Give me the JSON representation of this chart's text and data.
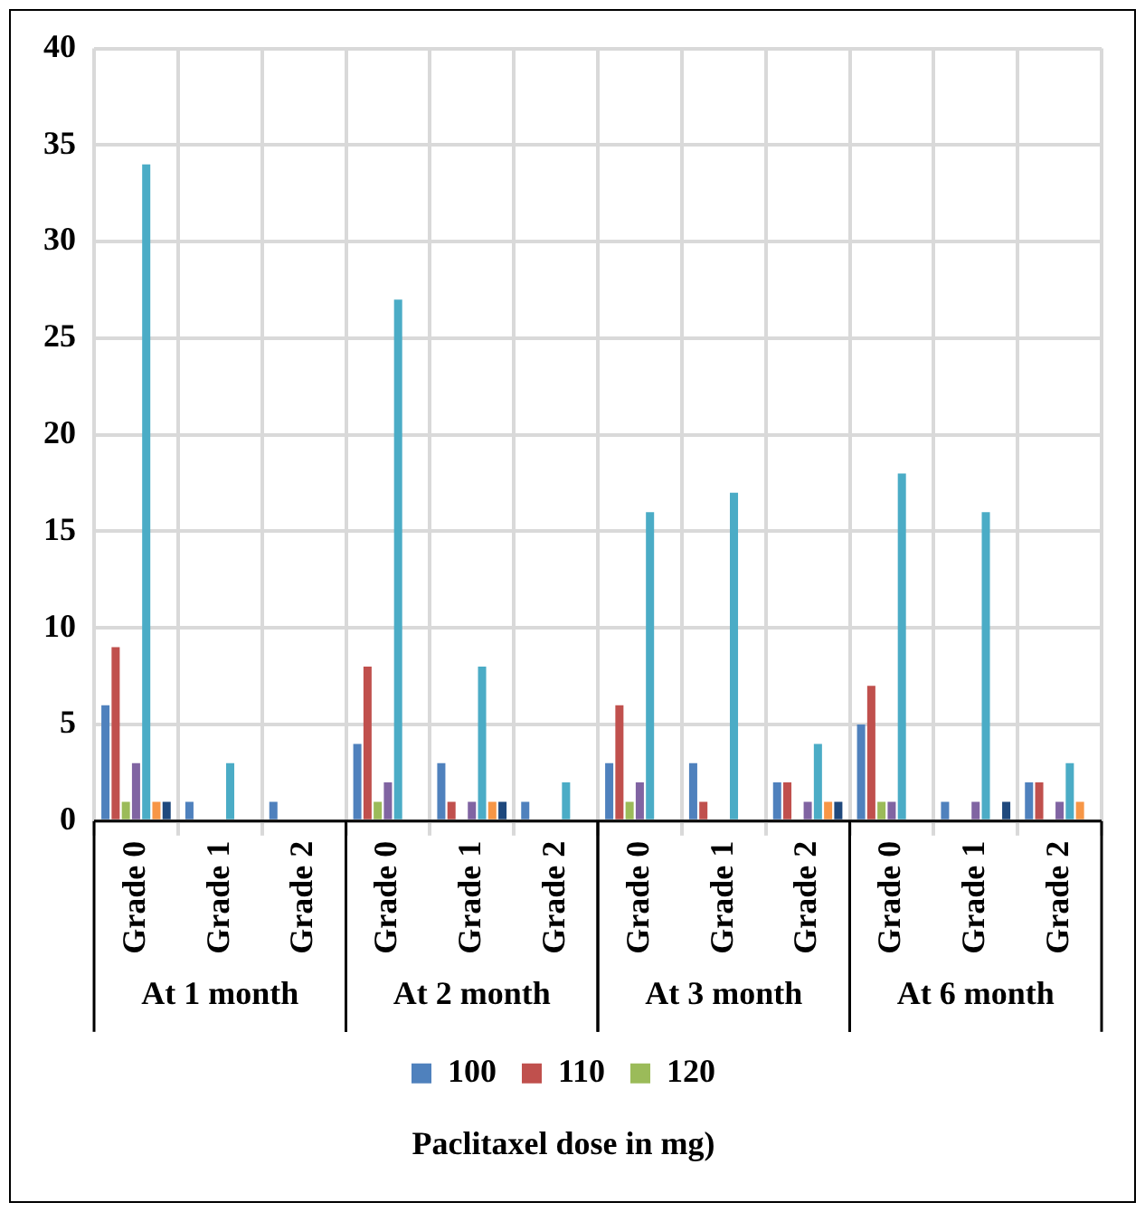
{
  "chart_data": {
    "type": "bar",
    "categories": [
      "Grade 0",
      "Grade 1",
      "Grade 2",
      "Grade 0",
      "Grade 1",
      "Grade 2",
      "Grade 0",
      "Grade 1",
      "Grade 2",
      "Grade 0",
      "Grade 1",
      "Grade 2"
    ],
    "series": [
      {
        "name": "100",
        "color": "#4f81bd",
        "values": [
          6,
          1,
          1,
          4,
          3,
          1,
          3,
          3,
          2,
          5,
          1,
          2
        ]
      },
      {
        "name": "110",
        "color": "#c0504d",
        "values": [
          9,
          0,
          0,
          8,
          1,
          0,
          6,
          1,
          2,
          7,
          0,
          2
        ]
      },
      {
        "name": "120",
        "color": "#9bbb59",
        "values": [
          1,
          0,
          0,
          1,
          0,
          0,
          1,
          0,
          0,
          1,
          0,
          0
        ]
      },
      {
        "color": "#8064a2",
        "values": [
          3,
          0,
          0,
          2,
          1,
          0,
          2,
          0,
          1,
          1,
          1,
          1
        ]
      },
      {
        "color": "#4bacc6",
        "values": [
          34,
          3,
          0,
          27,
          8,
          2,
          16,
          17,
          4,
          18,
          16,
          3
        ]
      },
      {
        "color": "#f79646",
        "values": [
          1,
          0,
          0,
          0,
          1,
          0,
          0,
          0,
          1,
          0,
          0,
          1
        ]
      },
      {
        "color": "#1f497d",
        "values": [
          1,
          0,
          0,
          0,
          1,
          0,
          0,
          0,
          1,
          0,
          1,
          0
        ]
      }
    ],
    "annotations": [
      "At 1 month",
      "At 2 month",
      "At 3 month",
      "At 6 month",
      "Paclitaxel dose in mg)"
    ],
    "ylim": [
      0,
      40
    ],
    "yticks": [
      0,
      5,
      10,
      15,
      20,
      25,
      30,
      35,
      40
    ],
    "grid": true,
    "legend": "bottom"
  }
}
